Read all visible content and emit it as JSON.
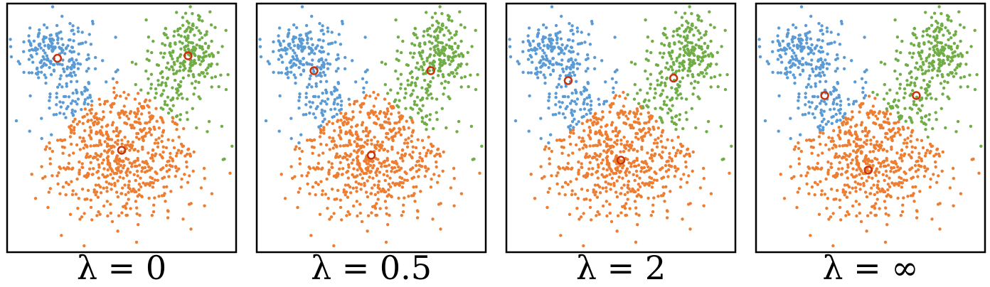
{
  "figure": {
    "colors": {
      "blue": "#5b9bd5",
      "orange": "#ed7d31",
      "green": "#70ad47",
      "centroid": "#c8330c",
      "frame": "#000000"
    }
  },
  "chart_data": [
    {
      "type": "scatter",
      "caption": "λ = 0",
      "xlim": [
        0,
        1
      ],
      "ylim": [
        0,
        1
      ],
      "grid": false,
      "ticks": false,
      "legend": "none",
      "centroids": [
        {
          "cluster": "blue",
          "x": 0.22,
          "y": 0.78
        },
        {
          "cluster": "green",
          "x": 0.79,
          "y": 0.79
        },
        {
          "cluster": "orange",
          "x": 0.5,
          "y": 0.41
        }
      ],
      "decision_rule": {
        "boundary_bias": 0.0
      }
    },
    {
      "type": "scatter",
      "caption": "λ = 0.5",
      "xlim": [
        0,
        1
      ],
      "ylim": [
        0,
        1
      ],
      "grid": false,
      "ticks": false,
      "legend": "none",
      "centroids": [
        {
          "cluster": "blue",
          "x": 0.25,
          "y": 0.73
        },
        {
          "cluster": "green",
          "x": 0.76,
          "y": 0.73
        },
        {
          "cluster": "orange",
          "x": 0.5,
          "y": 0.39
        }
      ],
      "decision_rule": {
        "boundary_bias": 0.08
      }
    },
    {
      "type": "scatter",
      "caption": "λ = 2",
      "xlim": [
        0,
        1
      ],
      "ylim": [
        0,
        1
      ],
      "grid": false,
      "ticks": false,
      "legend": "none",
      "centroids": [
        {
          "cluster": "blue",
          "x": 0.27,
          "y": 0.69
        },
        {
          "cluster": "green",
          "x": 0.73,
          "y": 0.7
        },
        {
          "cluster": "orange",
          "x": 0.5,
          "y": 0.37
        }
      ],
      "decision_rule": {
        "boundary_bias": 0.2
      }
    },
    {
      "type": "scatter",
      "caption": "λ = ∞",
      "xlim": [
        0,
        1
      ],
      "ylim": [
        0,
        1
      ],
      "grid": false,
      "ticks": false,
      "legend": "none",
      "centroids": [
        {
          "cluster": "blue",
          "x": 0.3,
          "y": 0.63
        },
        {
          "cluster": "green",
          "x": 0.7,
          "y": 0.63
        },
        {
          "cluster": "orange",
          "x": 0.49,
          "y": 0.33
        }
      ],
      "decision_rule": {
        "boundary_bias": 0.45
      }
    }
  ]
}
